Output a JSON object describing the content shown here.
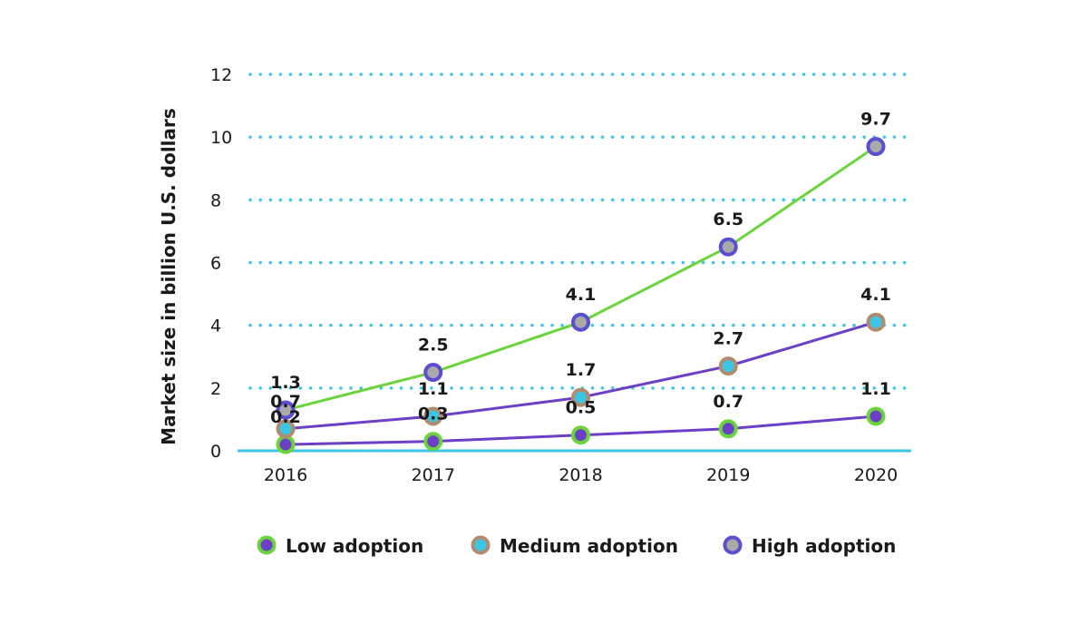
{
  "chart_data": {
    "type": "line",
    "title": "",
    "xlabel": "",
    "ylabel": "Market size in billion U.S. dollars",
    "categories": [
      "2016",
      "2017",
      "2018",
      "2019",
      "2020"
    ],
    "ylim": [
      0,
      12
    ],
    "yticks": [
      0,
      2,
      4,
      6,
      8,
      10,
      12
    ],
    "grid": true,
    "legend_position": "bottom",
    "series": [
      {
        "name": "Low adoption",
        "values": [
          0.2,
          0.3,
          0.5,
          0.7,
          1.1
        ],
        "line_color": "#6b3fc6",
        "marker_ring": "#6bd43a",
        "marker_fill": "#6b3fc6",
        "legend_ring": "#6bd43a",
        "legend_fill": "#6b3fc6"
      },
      {
        "name": "Medium adoption",
        "values": [
          0.7,
          1.1,
          1.7,
          2.7,
          4.1
        ],
        "line_color": "#6b3fc6",
        "marker_ring": "#b08b6e",
        "marker_fill": "#3cc6e6",
        "legend_ring": "#b08b6e",
        "legend_fill": "#3cc6e6"
      },
      {
        "name": "High adoption",
        "values": [
          1.3,
          2.5,
          4.1,
          6.5,
          9.7
        ],
        "line_color": "#6bd43a",
        "marker_ring": "#5a4fd0",
        "marker_fill": "#a9a9a9",
        "legend_ring": "#5a4fd0",
        "legend_fill": "#a9a9a9"
      }
    ],
    "colors": {
      "grid": "#3cc6e6",
      "baseline": "#3cc6e6",
      "text": "#1a1a1a"
    }
  }
}
